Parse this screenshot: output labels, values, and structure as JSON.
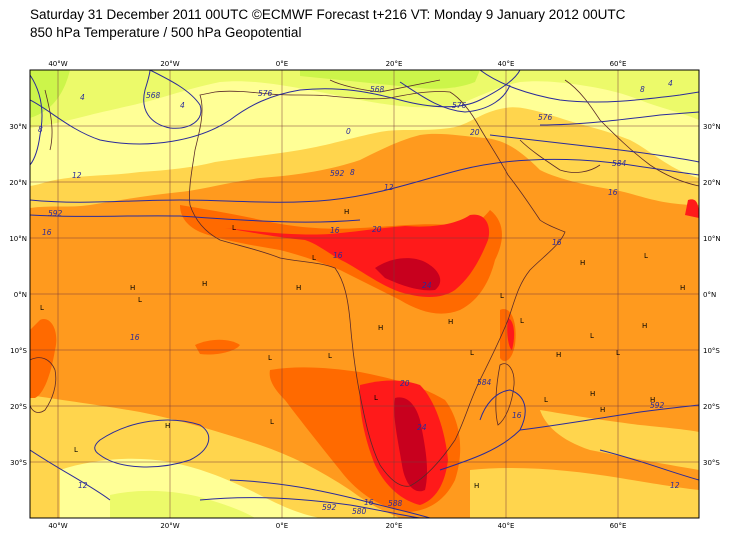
{
  "header": {
    "line1": "Saturday 31 December 2011 00UTC ©ECMWF Forecast t+216 VT: Monday 9 January 2012 00UTC",
    "line2": "850 hPa Temperature / 500 hPa Geopotential"
  },
  "axes": {
    "top_ticks": [
      "40°W",
      "20°W",
      "0°E",
      "20°E",
      "40°E",
      "60°E"
    ],
    "bottom_ticks": [
      "40°W",
      "20°W",
      "0°E",
      "20°E",
      "40°E",
      "60°E"
    ],
    "left_ticks": [
      "30°N",
      "20°N",
      "10°N",
      "0°N",
      "10°S",
      "20°S",
      "30°S"
    ],
    "right_ticks": [
      "30°N",
      "20°N",
      "10°N",
      "0°N",
      "10°S",
      "20°S",
      "30°S"
    ]
  },
  "temp_labels": [
    "24",
    "20",
    "20",
    "16",
    "16",
    "16",
    "16",
    "16",
    "16",
    "12",
    "12",
    "12",
    "12",
    "8",
    "8",
    "8",
    "4",
    "4",
    "4",
    "0",
    "20",
    "24",
    "16",
    "16"
  ],
  "geo_labels": [
    "592",
    "592",
    "584",
    "576",
    "576",
    "576",
    "568",
    "568",
    "584",
    "592",
    "588",
    "592",
    "580"
  ],
  "pressure_marks": [
    "H",
    "H",
    "H",
    "H",
    "H",
    "H",
    "H",
    "H",
    "H",
    "H",
    "H",
    "H",
    "H",
    "H",
    "H",
    "L",
    "L",
    "L",
    "L",
    "L",
    "L",
    "L",
    "L",
    "L",
    "L",
    "L",
    "L",
    "L",
    "L",
    "L",
    "L"
  ],
  "colors": {
    "band_0_4": "#ccf54a",
    "band_4_8": "#ecfa6a",
    "band_8_12": "#ffff96",
    "band_12_16": "#ffd54d",
    "band_16_20": "#ff9a1e",
    "band_20_24": "#ff6a00",
    "band_24_28": "#ff1a1a",
    "band_28_32": "#c8001e",
    "contour": "#2b2b9a",
    "coast": "#5a2a2a",
    "grid": "#7a3b3b"
  }
}
